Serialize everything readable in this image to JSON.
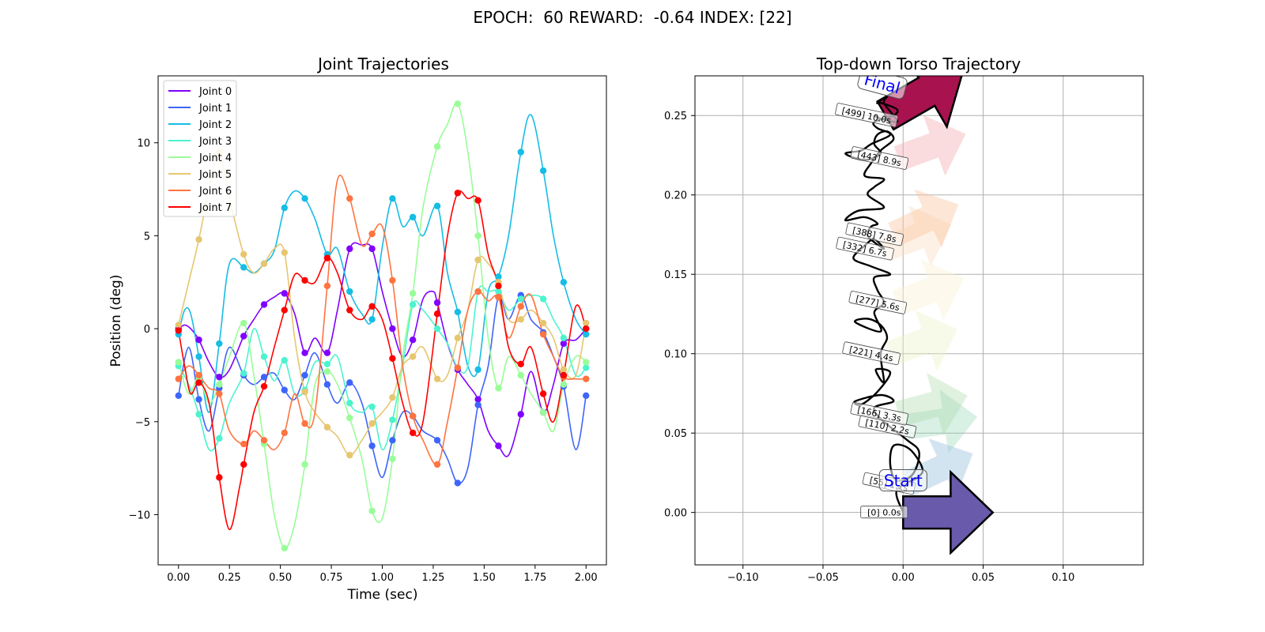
{
  "figure": {
    "suptitle": "EPOCH:  60 REWARD:  -0.64 INDEX: [22]"
  },
  "chart_data": [
    {
      "type": "line",
      "title": "Joint Trajectories",
      "xlabel": "Time (sec)",
      "ylabel": "Position (deg)",
      "xlim": [
        -0.1,
        2.1
      ],
      "ylim": [
        -12.7,
        13.6
      ],
      "xticks": [
        0.0,
        0.25,
        0.5,
        0.75,
        1.0,
        1.25,
        1.5,
        1.75,
        2.0
      ],
      "xtick_labels": [
        "0.00",
        "0.25",
        "0.50",
        "0.75",
        "1.00",
        "1.25",
        "1.50",
        "1.75",
        "2.00"
      ],
      "yticks": [
        -10,
        -5,
        0,
        5,
        10
      ],
      "ytick_labels": [
        "−10",
        "−5",
        "0",
        "5",
        "10"
      ],
      "grid": false,
      "legend": "top-left",
      "marker_x": [
        0.0,
        0.1,
        0.2,
        0.32,
        0.42,
        0.52,
        0.62,
        0.73,
        0.84,
        0.95,
        1.05,
        1.15,
        1.27,
        1.37,
        1.47,
        1.57,
        1.68,
        1.79,
        1.89,
        2.0
      ],
      "series": [
        {
          "name": "Joint 0",
          "color": "#8000ff",
          "x": [
            0.0,
            0.03,
            0.06,
            0.1,
            0.15,
            0.2,
            0.25,
            0.32,
            0.37,
            0.42,
            0.47,
            0.52,
            0.57,
            0.62,
            0.67,
            0.73,
            0.78,
            0.84,
            0.9,
            0.95,
            1.0,
            1.05,
            1.1,
            1.15,
            1.2,
            1.25,
            1.27,
            1.32,
            1.37,
            1.42,
            1.47,
            1.52,
            1.57,
            1.62,
            1.68,
            1.73,
            1.79,
            1.84,
            1.89,
            1.95,
            2.0
          ],
          "y": [
            0.0,
            0.2,
            0.0,
            -0.6,
            -1.8,
            -2.6,
            -2.2,
            -0.4,
            0.5,
            1.3,
            1.7,
            1.9,
            0.8,
            -1.3,
            -0.5,
            -1.3,
            1.0,
            4.3,
            4.5,
            4.3,
            2.0,
            0.0,
            -1.5,
            -0.6,
            1.6,
            2.0,
            1.4,
            -0.8,
            -2.2,
            -3.0,
            -3.8,
            -5.5,
            -6.3,
            -6.8,
            -4.6,
            -2.3,
            -4.5,
            -3.0,
            -0.8,
            -0.6,
            0.0
          ]
        },
        {
          "name": "Joint 1",
          "color": "#3e65fa",
          "x": [
            0.0,
            0.05,
            0.1,
            0.15,
            0.2,
            0.25,
            0.32,
            0.37,
            0.42,
            0.47,
            0.52,
            0.57,
            0.62,
            0.67,
            0.73,
            0.78,
            0.84,
            0.9,
            0.95,
            1.0,
            1.05,
            1.1,
            1.15,
            1.2,
            1.27,
            1.32,
            1.37,
            1.42,
            1.47,
            1.52,
            1.57,
            1.62,
            1.68,
            1.73,
            1.79,
            1.84,
            1.89,
            1.95,
            2.0
          ],
          "y": [
            -3.6,
            -1.0,
            -3.8,
            -5.5,
            -3.2,
            -1.0,
            -2.5,
            -3.0,
            -2.6,
            -2.4,
            -3.3,
            -3.8,
            -2.5,
            -1.3,
            -3.0,
            -4.0,
            -2.9,
            -4.0,
            -6.3,
            -8.0,
            -6.0,
            -4.5,
            -4.7,
            -5.5,
            -6.0,
            -7.0,
            -8.3,
            -7.5,
            -4.1,
            -2.0,
            1.7,
            0.5,
            1.8,
            0.5,
            -0.2,
            -1.5,
            -3.1,
            -6.5,
            -3.6
          ]
        },
        {
          "name": "Joint 2",
          "color": "#16bde5",
          "x": [
            0.0,
            0.03,
            0.06,
            0.1,
            0.15,
            0.2,
            0.25,
            0.32,
            0.37,
            0.42,
            0.47,
            0.52,
            0.57,
            0.62,
            0.67,
            0.73,
            0.78,
            0.84,
            0.9,
            0.95,
            1.0,
            1.05,
            1.1,
            1.15,
            1.2,
            1.27,
            1.32,
            1.37,
            1.42,
            1.47,
            1.52,
            1.57,
            1.62,
            1.68,
            1.73,
            1.79,
            1.84,
            1.89,
            1.95,
            2.0
          ],
          "y": [
            -0.3,
            1.0,
            0.8,
            -1.5,
            -4.5,
            -0.8,
            3.5,
            3.3,
            3.0,
            3.5,
            4.2,
            6.5,
            7.4,
            7.0,
            5.9,
            4.0,
            4.3,
            2.0,
            0.8,
            0.5,
            4.4,
            7.0,
            5.5,
            6.0,
            5.0,
            6.6,
            3.0,
            0.9,
            -2.0,
            -2.2,
            2.0,
            2.8,
            5.0,
            9.5,
            11.5,
            8.5,
            5.0,
            2.5,
            0.5,
            -0.3
          ]
        },
        {
          "name": "Joint 3",
          "color": "#4df3ce",
          "x": [
            0.0,
            0.05,
            0.1,
            0.15,
            0.2,
            0.25,
            0.32,
            0.37,
            0.42,
            0.47,
            0.52,
            0.57,
            0.62,
            0.67,
            0.73,
            0.78,
            0.84,
            0.9,
            0.95,
            1.0,
            1.05,
            1.1,
            1.15,
            1.2,
            1.27,
            1.32,
            1.37,
            1.42,
            1.47,
            1.52,
            1.57,
            1.62,
            1.68,
            1.73,
            1.79,
            1.84,
            1.89,
            1.95,
            2.0
          ],
          "y": [
            -2.0,
            -3.0,
            -4.6,
            -6.5,
            -5.9,
            -4.0,
            -2.4,
            0.0,
            -1.5,
            -2.8,
            -1.7,
            -3.5,
            -3.3,
            -1.8,
            -1.9,
            -1.5,
            -4.0,
            -4.5,
            -4.2,
            -6.5,
            -4.9,
            -2.0,
            1.3,
            1.0,
            0.0,
            -0.8,
            -2.1,
            -2.0,
            2.0,
            2.0,
            2.0,
            1.0,
            1.6,
            1.8,
            1.6,
            0.5,
            -0.5,
            -2.5,
            -2.1
          ]
        },
        {
          "name": "Joint 4",
          "color": "#99fd98",
          "x": [
            0.0,
            0.05,
            0.1,
            0.15,
            0.2,
            0.25,
            0.32,
            0.37,
            0.42,
            0.47,
            0.52,
            0.57,
            0.62,
            0.67,
            0.73,
            0.78,
            0.84,
            0.9,
            0.95,
            1.0,
            1.05,
            1.1,
            1.15,
            1.2,
            1.27,
            1.32,
            1.37,
            1.42,
            1.47,
            1.52,
            1.57,
            1.62,
            1.68,
            1.73,
            1.79,
            1.84,
            1.89,
            1.95,
            2.0
          ],
          "y": [
            -1.8,
            -3.5,
            -2.6,
            -4.0,
            -3.0,
            -1.5,
            0.3,
            -2.5,
            -6.2,
            -10.0,
            -11.8,
            -10.5,
            -7.3,
            -3.0,
            -2.3,
            -3.0,
            -4.8,
            -7.0,
            -9.8,
            -10.2,
            -7.0,
            -1.5,
            1.9,
            6.5,
            9.8,
            11.0,
            12.1,
            9.5,
            5.0,
            -0.5,
            -3.2,
            -1.5,
            -2.5,
            -3.5,
            -4.5,
            -5.5,
            -3.0,
            -1.5,
            -1.8
          ]
        },
        {
          "name": "Joint 5",
          "color": "#e6c670",
          "x": [
            0.0,
            0.05,
            0.1,
            0.15,
            0.2,
            0.25,
            0.32,
            0.37,
            0.42,
            0.47,
            0.52,
            0.57,
            0.62,
            0.67,
            0.73,
            0.78,
            0.84,
            0.9,
            0.95,
            1.0,
            1.05,
            1.1,
            1.15,
            1.2,
            1.27,
            1.32,
            1.37,
            1.42,
            1.47,
            1.52,
            1.57,
            1.62,
            1.68,
            1.73,
            1.79,
            1.84,
            1.89,
            1.95,
            2.0
          ],
          "y": [
            0.2,
            2.5,
            4.8,
            7.5,
            9.5,
            7.0,
            4.0,
            3.0,
            3.5,
            4.3,
            4.1,
            -0.5,
            -3.4,
            -4.5,
            -5.3,
            -5.8,
            -6.8,
            -6.0,
            -5.1,
            -4.5,
            -3.7,
            -2.0,
            -1.5,
            -1.0,
            -2.7,
            -2.5,
            -0.5,
            1.0,
            3.7,
            3.5,
            2.5,
            0.5,
            0.5,
            1.0,
            0.3,
            -0.5,
            -2.2,
            -2.5,
            0.3
          ]
        },
        {
          "name": "Joint 6",
          "color": "#ff7340",
          "x": [
            0.0,
            0.05,
            0.1,
            0.15,
            0.2,
            0.25,
            0.32,
            0.37,
            0.42,
            0.47,
            0.52,
            0.57,
            0.62,
            0.67,
            0.73,
            0.78,
            0.84,
            0.9,
            0.95,
            1.0,
            1.05,
            1.1,
            1.15,
            1.2,
            1.27,
            1.32,
            1.37,
            1.42,
            1.47,
            1.52,
            1.57,
            1.62,
            1.68,
            1.73,
            1.79,
            1.84,
            1.89,
            1.95,
            2.0
          ],
          "y": [
            -2.7,
            -2.0,
            -2.5,
            -3.2,
            -3.5,
            -5.5,
            -6.2,
            -5.5,
            -6.0,
            -6.5,
            -5.6,
            -3.5,
            -5.1,
            -4.5,
            2.3,
            8.0,
            7.0,
            4.5,
            5.1,
            5.5,
            2.6,
            -2.0,
            -4.7,
            -6.0,
            -7.3,
            -5.0,
            -2.1,
            1.0,
            2.0,
            1.5,
            1.7,
            -0.5,
            1.2,
            1.8,
            -0.3,
            -1.5,
            -2.6,
            -2.7,
            -2.7
          ]
        },
        {
          "name": "Joint 7",
          "color": "#ff0000",
          "x": [
            0.0,
            0.03,
            0.06,
            0.1,
            0.15,
            0.2,
            0.25,
            0.3,
            0.32,
            0.37,
            0.42,
            0.47,
            0.52,
            0.57,
            0.62,
            0.67,
            0.73,
            0.78,
            0.84,
            0.9,
            0.95,
            1.0,
            1.05,
            1.1,
            1.15,
            1.2,
            1.27,
            1.32,
            1.37,
            1.42,
            1.47,
            1.52,
            1.57,
            1.62,
            1.68,
            1.73,
            1.79,
            1.84,
            1.89,
            1.95,
            2.0
          ],
          "y": [
            -0.1,
            -2.0,
            -3.5,
            -2.9,
            -4.0,
            -8.0,
            -10.8,
            -8.5,
            -7.3,
            -4.5,
            -3.1,
            -1.0,
            1.0,
            2.9,
            2.6,
            2.5,
            3.8,
            3.0,
            1.0,
            0.5,
            1.2,
            0.5,
            -1.6,
            -4.0,
            -5.6,
            -5.0,
            0.8,
            5.0,
            7.3,
            7.0,
            6.9,
            4.0,
            2.3,
            -1.0,
            -1.9,
            -1.0,
            -3.5,
            -5.0,
            -2.5,
            1.2,
            0.0
          ]
        }
      ]
    },
    {
      "type": "line",
      "title": "Top-down Torso Trajectory",
      "xlim": [
        -0.13,
        0.15
      ],
      "ylim": [
        -0.033,
        0.275
      ],
      "xticks": [
        -0.1,
        -0.05,
        0.0,
        0.05,
        0.1
      ],
      "xtick_labels": [
        "−0.10",
        "−0.05",
        "0.00",
        "0.05",
        "0.10"
      ],
      "yticks": [
        0.0,
        0.05,
        0.1,
        0.15,
        0.2,
        0.25
      ],
      "ytick_labels": [
        "0.00",
        "0.05",
        "0.10",
        "0.15",
        "0.20",
        "0.25"
      ],
      "grid": true,
      "path": {
        "x": [
          0.0,
          -0.004,
          0.009,
          0.012,
          0.004,
          -0.006,
          -0.008,
          -0.004,
          0.006,
          0.01,
          0.002,
          -0.013,
          -0.018,
          -0.006,
          -0.014,
          -0.03,
          -0.026,
          -0.016,
          -0.008,
          -0.017,
          -0.012,
          -0.014,
          -0.01,
          -0.014,
          -0.022,
          -0.03,
          -0.014,
          -0.018,
          -0.012,
          -0.016,
          -0.018,
          -0.008,
          -0.02,
          -0.031,
          -0.024,
          -0.018,
          -0.012,
          -0.022,
          -0.02,
          -0.016,
          -0.024,
          -0.036,
          -0.028,
          -0.012,
          -0.022,
          -0.018,
          -0.012,
          -0.024,
          -0.02,
          -0.014,
          -0.006,
          -0.01,
          -0.016,
          -0.018,
          -0.014,
          -0.024,
          -0.036,
          -0.026,
          -0.02,
          -0.008,
          -0.016,
          -0.018,
          -0.006,
          -0.004,
          -0.014,
          -0.016,
          -0.01,
          -0.012,
          -0.006,
          -0.004,
          -0.014,
          -0.018
        ],
        "y": [
          0.0,
          0.014,
          0.022,
          0.028,
          0.04,
          0.042,
          0.03,
          0.02,
          0.024,
          0.038,
          0.046,
          0.058,
          0.066,
          0.07,
          0.074,
          0.07,
          0.068,
          0.076,
          0.088,
          0.09,
          0.082,
          0.1,
          0.11,
          0.118,
          0.122,
          0.12,
          0.114,
          0.126,
          0.132,
          0.14,
          0.148,
          0.15,
          0.155,
          0.16,
          0.168,
          0.172,
          0.166,
          0.174,
          0.18,
          0.182,
          0.186,
          0.184,
          0.19,
          0.192,
          0.2,
          0.205,
          0.21,
          0.212,
          0.22,
          0.228,
          0.235,
          0.24,
          0.238,
          0.232,
          0.226,
          0.222,
          0.226,
          0.228,
          0.232,
          0.238,
          0.242,
          0.246,
          0.25,
          0.254,
          0.258,
          0.258,
          0.262,
          0.258,
          0.25,
          0.246,
          0.248,
          0.25
        ]
      },
      "arrows": [
        {
          "label": "[0] 0.0s",
          "x": 0.0,
          "y": 0.0,
          "dir": 0,
          "color": "#6a5aab",
          "opacity": 1.0,
          "size": 1.0,
          "edge": true
        },
        {
          "label": "[55] 1.1s",
          "x": 0.003,
          "y": 0.018,
          "dir": -25,
          "color": "#9ec4df",
          "opacity": 0.45,
          "size": 0.8,
          "edge": false
        },
        {
          "label": "[110] 2.2s",
          "x": 0.002,
          "y": 0.054,
          "dir": -8,
          "color": "#93d3b5",
          "opacity": 0.35,
          "size": 0.8,
          "edge": false
        },
        {
          "label": "[166] 3.3s",
          "x": -0.003,
          "y": 0.062,
          "dir": -15,
          "color": "#a6dba4",
          "opacity": 0.35,
          "size": 0.8,
          "edge": false
        },
        {
          "label": "[221] 4.4s",
          "x": -0.008,
          "y": 0.1,
          "dir": -20,
          "color": "#eef3c8",
          "opacity": 0.4,
          "size": 0.8,
          "edge": false
        },
        {
          "label": "[277] 5.6s",
          "x": -0.004,
          "y": 0.132,
          "dir": -20,
          "color": "#fbf2d8",
          "opacity": 0.45,
          "size": 0.8,
          "edge": false
        },
        {
          "label": "[332] 6.7s",
          "x": -0.012,
          "y": 0.166,
          "dir": -20,
          "color": "#fbd9bc",
          "opacity": 0.4,
          "size": 0.8,
          "edge": false
        },
        {
          "label": "[388] 7.8s",
          "x": -0.006,
          "y": 0.175,
          "dir": -25,
          "color": "#fbc7a5",
          "opacity": 0.45,
          "size": 0.8,
          "edge": false
        },
        {
          "label": "[443] 8.9s",
          "x": -0.003,
          "y": 0.223,
          "dir": -20,
          "color": "#f3b1b6",
          "opacity": 0.45,
          "size": 0.8,
          "edge": false
        },
        {
          "label": "[499] 10.0s",
          "x": -0.011,
          "y": 0.25,
          "dir": -30,
          "color": "#a8124f",
          "opacity": 1.0,
          "size": 1.0,
          "edge": true
        }
      ],
      "annotations": [
        {
          "text": "Start",
          "x": 0.0,
          "y": 0.02,
          "rotate": 0
        },
        {
          "text": "Final",
          "x": -0.013,
          "y": 0.27,
          "rotate": 15
        }
      ]
    }
  ]
}
